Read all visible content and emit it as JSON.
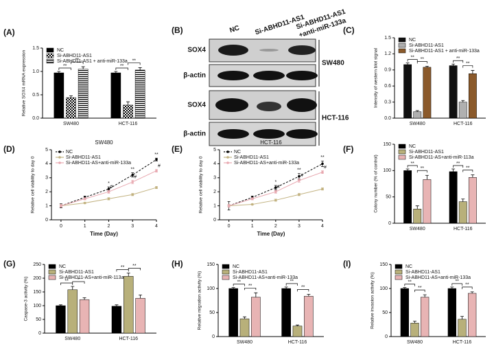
{
  "blot": {
    "panel": "(B)",
    "lanes": [
      [
        "NC"
      ],
      [
        "Si-ABHD11-AS1"
      ],
      [
        "Si-ABHD11-AS1",
        "+anti-miR-133a"
      ]
    ],
    "rows": [
      "SOX4",
      "β-actin",
      "SOX4",
      "β-actin"
    ],
    "groups": [
      "SW480",
      "HCT-116"
    ]
  },
  "chart_data": [
    {
      "panel": "(A)",
      "type": "bar",
      "ylabel": "Relative SOX4 mRNA expression",
      "categories": [
        "SW480",
        "HCT-116"
      ],
      "ylim": [
        0,
        1.5
      ],
      "yticks": [
        {
          "value": 0,
          "label": "0.0"
        },
        {
          "value": 0.5,
          "label": "0.5"
        },
        {
          "value": 1,
          "label": "1.0"
        },
        {
          "value": 1.5,
          "label": "1.5"
        }
      ],
      "legend": "upper left",
      "series": [
        {
          "name": "NC",
          "color": "#000000",
          "pattern": "solid",
          "values": [
            0.97,
            0.97
          ],
          "errors": [
            0.03,
            0.03
          ]
        },
        {
          "name": "Si-ABHD11-AS1",
          "color": "#000000",
          "pattern": "checker",
          "values": [
            0.44,
            0.28
          ],
          "errors": [
            0.04,
            0.07
          ]
        },
        {
          "name": "Si-ABHD11-AS1 + anti-miR-133a",
          "color": "#000000",
          "pattern": "hstripe",
          "values": [
            1.05,
            1.03
          ],
          "errors": [
            0.05,
            0.05
          ]
        }
      ],
      "annotations": [
        {
          "text": "**",
          "category": 0,
          "from": 0,
          "to": 1
        },
        {
          "text": "**",
          "category": 0,
          "from": 1,
          "to": 2
        },
        {
          "text": "**",
          "category": 1,
          "from": 0,
          "to": 1
        },
        {
          "text": "**",
          "category": 1,
          "from": 1,
          "to": 2
        }
      ]
    },
    {
      "panel": "(C)",
      "type": "bar",
      "ylabel": "Intensity of western blot signal",
      "categories": [
        "SW480",
        "HCT-116"
      ],
      "ylim": [
        0,
        1.5
      ],
      "yticks": [
        {
          "value": 0,
          "label": "0.0"
        },
        {
          "value": 0.3,
          "label": "0.3"
        },
        {
          "value": 0.6,
          "label": "0.6"
        },
        {
          "value": 0.9,
          "label": "0.9"
        },
        {
          "value": 1.2,
          "label": "1.2"
        },
        {
          "value": 1.5,
          "label": "1.5"
        }
      ],
      "legend": "upper left",
      "series": [
        {
          "name": "NC",
          "color": "#111111",
          "pattern": "solid",
          "values": [
            1.0,
            0.98
          ],
          "errors": [
            0.03,
            0.03
          ]
        },
        {
          "name": "Si-ABHD11-AS1",
          "color": "#b0b0b0",
          "pattern": "solid",
          "values": [
            0.12,
            0.3
          ],
          "errors": [
            0.02,
            0.03
          ]
        },
        {
          "name": "Si-ABHD11-AS1 + anti-miR-133a",
          "color": "#8b5a2b",
          "pattern": "solid",
          "values": [
            0.95,
            0.83
          ],
          "errors": [
            0.02,
            0.06
          ]
        }
      ],
      "annotations": [
        {
          "text": "**",
          "category": 0,
          "from": 0,
          "to": 1
        },
        {
          "text": "**",
          "category": 0,
          "from": 1,
          "to": 2
        },
        {
          "text": "**",
          "category": 1,
          "from": 0,
          "to": 1
        },
        {
          "text": "**",
          "category": 1,
          "from": 1,
          "to": 2
        }
      ]
    },
    {
      "panel": "(D)",
      "type": "line",
      "title": "SW480",
      "xlabel": "Time (Day)",
      "ylabel": "Relative cell viability to day 0",
      "x": [
        0,
        1,
        2,
        3,
        4
      ],
      "xlim": [
        -0.4,
        4
      ],
      "xticks": [
        0,
        1,
        2,
        3,
        4
      ],
      "ylim": [
        0,
        5
      ],
      "yticks": [
        0,
        1,
        2,
        3,
        4,
        5
      ],
      "legend": "upper left",
      "series": [
        {
          "name": "NC",
          "color": "#000000",
          "dashed": true,
          "values": [
            1,
            1.6,
            2.2,
            3.2,
            4.3
          ],
          "errors": [
            0.15,
            0.1,
            0.15,
            0.15,
            0.1
          ]
        },
        {
          "name": "Si-ABHD11-AS1",
          "color": "#c2b280",
          "dashed": false,
          "values": [
            1,
            1.2,
            1.5,
            1.8,
            2.3
          ],
          "errors": [
            0.1,
            0.05,
            0.08,
            0.08,
            0.08
          ]
        },
        {
          "name": "Si-ABHD11-AS+anti-miR-133a",
          "color": "#e8a8b0",
          "dashed": false,
          "values": [
            1,
            1.5,
            2.0,
            2.7,
            3.5
          ],
          "errors": [
            0.1,
            0.08,
            0.1,
            0.12,
            0.1
          ]
        }
      ],
      "annotations": [
        {
          "text": "*",
          "series": 0,
          "index": 2
        },
        {
          "text": "#",
          "series": 2,
          "index": 2
        },
        {
          "text": "**",
          "series": 0,
          "index": 3
        },
        {
          "text": "#",
          "series": 2,
          "index": 3
        },
        {
          "text": "**",
          "series": 0,
          "index": 4
        },
        {
          "text": "#",
          "series": 2,
          "index": 4
        }
      ]
    },
    {
      "panel": "(E)",
      "type": "line",
      "title": "HCT-116",
      "xlabel": "Time (Day)",
      "ylabel": "Relative cell viability to day 0",
      "x": [
        0,
        1,
        2,
        3,
        4
      ],
      "xlim": [
        -0.4,
        4
      ],
      "xticks": [
        0,
        1,
        2,
        3,
        4
      ],
      "ylim": [
        0,
        5
      ],
      "yticks": [
        0,
        1,
        2,
        3,
        4,
        5
      ],
      "legend": "upper left",
      "series": [
        {
          "name": "NC",
          "color": "#000000",
          "dashed": true,
          "values": [
            1,
            1.6,
            2.3,
            3.1,
            4.0
          ],
          "errors": [
            0.3,
            0.1,
            0.15,
            0.2,
            0.2
          ]
        },
        {
          "name": "Si-ABHD11-AS1",
          "color": "#c2b280",
          "dashed": false,
          "values": [
            1,
            1.1,
            1.4,
            1.8,
            2.2
          ],
          "errors": [
            0.1,
            0.05,
            0.08,
            0.08,
            0.08
          ]
        },
        {
          "name": "Si-ABHD11-AS+anti-miR-133a",
          "color": "#e8a8b0",
          "dashed": false,
          "values": [
            1,
            1.5,
            2.0,
            2.8,
            3.4
          ],
          "errors": [
            0.1,
            0.08,
            0.1,
            0.12,
            0.1
          ]
        }
      ],
      "annotations": [
        {
          "text": "*",
          "series": 0,
          "index": 2
        },
        {
          "text": "#",
          "series": 2,
          "index": 2
        },
        {
          "text": "**",
          "series": 0,
          "index": 3
        },
        {
          "text": "#",
          "series": 2,
          "index": 3
        },
        {
          "text": "**",
          "series": 0,
          "index": 4
        },
        {
          "text": "#",
          "series": 2,
          "index": 4
        }
      ]
    },
    {
      "panel": "(F)",
      "type": "bar",
      "ylabel": "Colony number (% of control)",
      "categories": [
        "SW480",
        "HCT-116"
      ],
      "ylim": [
        0,
        150
      ],
      "yticks": [
        0,
        50,
        100,
        150
      ],
      "legend": "upper left",
      "series": [
        {
          "name": "NC",
          "color": "#000000",
          "pattern": "solid",
          "values": [
            100,
            98
          ],
          "errors": [
            3,
            5
          ]
        },
        {
          "name": "Si-ABHD11-AS1",
          "color": "#b8b07a",
          "pattern": "solid",
          "values": [
            27,
            41
          ],
          "errors": [
            6,
            5
          ]
        },
        {
          "name": "Si-ABHD11-AS+anti-miR-113a",
          "color": "#e8b4b4",
          "pattern": "solid",
          "values": [
            83,
            87
          ],
          "errors": [
            8,
            5
          ]
        }
      ],
      "annotations": [
        {
          "text": "**",
          "category": 0,
          "from": 0,
          "to": 1
        },
        {
          "text": "**",
          "category": 0,
          "from": 1,
          "to": 2
        },
        {
          "text": "**",
          "category": 1,
          "from": 0,
          "to": 1
        },
        {
          "text": "**",
          "category": 1,
          "from": 1,
          "to": 2
        }
      ]
    },
    {
      "panel": "(G)",
      "type": "bar",
      "ylabel": "Caspase-3 activity (%)",
      "categories": [
        "SW480",
        "HCT-116"
      ],
      "ylim": [
        0,
        250
      ],
      "yticks": [
        0,
        50,
        100,
        150,
        200,
        250
      ],
      "legend": "upper left",
      "series": [
        {
          "name": "NC",
          "color": "#000000",
          "pattern": "solid",
          "values": [
            100,
            98
          ],
          "errors": [
            3,
            5
          ]
        },
        {
          "name": "Si-ABHD11-AS1",
          "color": "#b8b07a",
          "pattern": "solid",
          "values": [
            158,
            207
          ],
          "errors": [
            12,
            12
          ]
        },
        {
          "name": "Si-ABHD11-AS+anti-miR-113a",
          "color": "#e8b4b4",
          "pattern": "solid",
          "values": [
            122,
            127
          ],
          "errors": [
            7,
            12
          ]
        }
      ],
      "annotations": [
        {
          "text": "**",
          "category": 0,
          "from": 0,
          "to": 1
        },
        {
          "text": "*",
          "category": 0,
          "from": 1,
          "to": 2
        },
        {
          "text": "**",
          "category": 1,
          "from": 0,
          "to": 1
        },
        {
          "text": "**",
          "category": 1,
          "from": 1,
          "to": 2
        }
      ]
    },
    {
      "panel": "(H)",
      "type": "bar",
      "ylabel": "Relative migration activity (%)",
      "categories": [
        "SW480",
        "HCT-116"
      ],
      "ylim": [
        0,
        150
      ],
      "yticks": [
        0,
        50,
        100,
        150
      ],
      "legend": "upper left",
      "series": [
        {
          "name": "NC",
          "color": "#000000",
          "pattern": "solid",
          "values": [
            100,
            100
          ],
          "errors": [
            2,
            3
          ]
        },
        {
          "name": "Si-ABHD11-AS1",
          "color": "#b8b07a",
          "pattern": "solid",
          "values": [
            37,
            22
          ],
          "errors": [
            4,
            2
          ]
        },
        {
          "name": "Si-ABHD11-AS+anti-miR-133a",
          "color": "#e8b4b4",
          "pattern": "solid",
          "values": [
            82,
            84
          ],
          "errors": [
            9,
            4
          ]
        }
      ],
      "annotations": [
        {
          "text": "**",
          "category": 0,
          "from": 0,
          "to": 1
        },
        {
          "text": "**",
          "category": 0,
          "from": 1,
          "to": 2
        },
        {
          "text": "**",
          "category": 1,
          "from": 0,
          "to": 1
        },
        {
          "text": "**",
          "category": 1,
          "from": 1,
          "to": 2
        }
      ]
    },
    {
      "panel": "(I)",
      "type": "bar",
      "ylabel": "Relative invasion activity (%)",
      "categories": [
        "SW480",
        "HCT-116"
      ],
      "ylim": [
        0,
        150
      ],
      "yticks": [
        0,
        50,
        100,
        150
      ],
      "legend": "upper left",
      "series": [
        {
          "name": "NC",
          "color": "#000000",
          "pattern": "solid",
          "values": [
            100,
            100
          ],
          "errors": [
            2,
            3
          ]
        },
        {
          "name": "Si-ABHD11-AS1",
          "color": "#b8b07a",
          "pattern": "solid",
          "values": [
            28,
            36
          ],
          "errors": [
            4,
            6
          ]
        },
        {
          "name": "Si-ABHD11-AS+anti-miR-133a",
          "color": "#e8b4b4",
          "pattern": "solid",
          "values": [
            82,
            90
          ],
          "errors": [
            5,
            3
          ]
        }
      ],
      "annotations": [
        {
          "text": "**",
          "category": 0,
          "from": 0,
          "to": 1
        },
        {
          "text": "**",
          "category": 0,
          "from": 1,
          "to": 2
        },
        {
          "text": "**",
          "category": 1,
          "from": 0,
          "to": 1
        },
        {
          "text": "**",
          "category": 1,
          "from": 1,
          "to": 2
        }
      ]
    }
  ]
}
